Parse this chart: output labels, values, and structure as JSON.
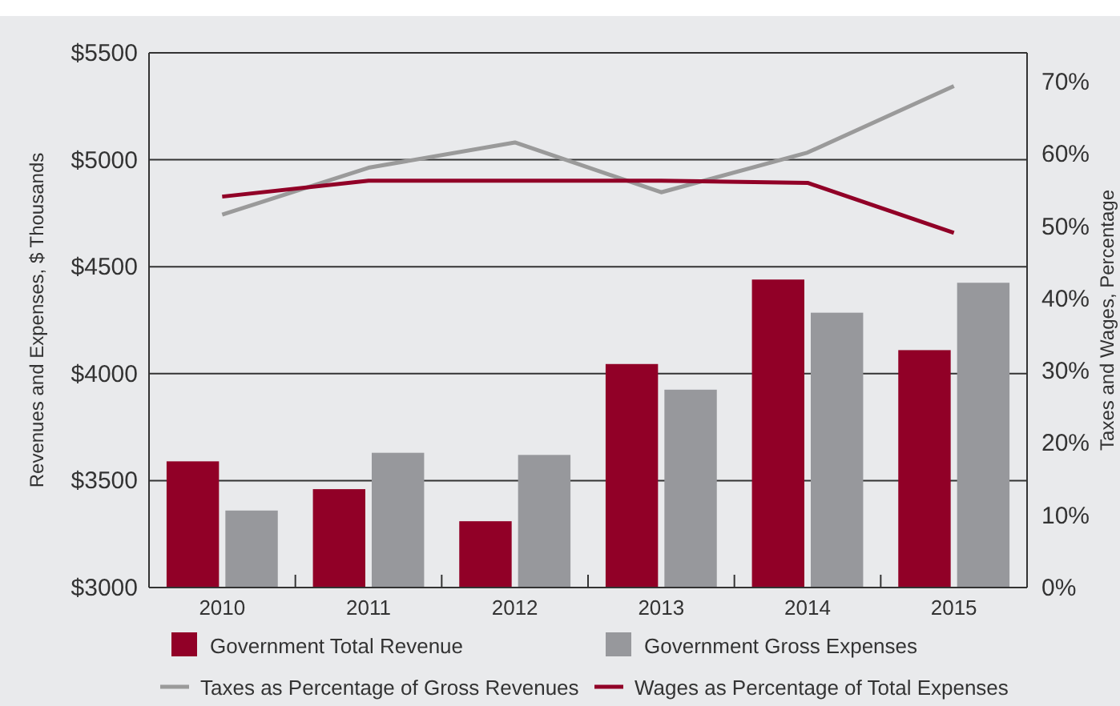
{
  "chart_data": {
    "type": "bar",
    "ylabel": "Revenues and Expenses, $ Thousands",
    "y2label": "Taxes and Wages, Percentage",
    "categories": [
      "2010",
      "2011",
      "2012",
      "2013",
      "2014",
      "2015"
    ],
    "series": [
      {
        "name": "Government Total Revenue",
        "color": "#910027",
        "values": [
          3590,
          3460,
          3310,
          4045,
          4440,
          4110
        ]
      },
      {
        "name": "Government Gross Expenses",
        "color": "#97989c",
        "values": [
          3360,
          3630,
          3620,
          3925,
          4285,
          4425
        ]
      },
      {
        "name": "Taxes as Percentage of Gross Revenues",
        "type": "line",
        "axis": "y2",
        "color": "#9a9a9a",
        "values": [
          51.6,
          58.1,
          61.6,
          54.7,
          60.2,
          69.4
        ]
      },
      {
        "name": "Wages as Percentage of Total Expenses",
        "type": "line",
        "axis": "y2",
        "color": "#910027",
        "values": [
          54.1,
          56.3,
          56.3,
          56.3,
          56.0,
          49.1
        ]
      }
    ],
    "ylim": [
      3000,
      5500
    ],
    "yticks": [
      {
        "value": 3000,
        "label": "$3000"
      },
      {
        "value": 3500,
        "label": "$3500"
      },
      {
        "value": 4000,
        "label": "$4000"
      },
      {
        "value": 4500,
        "label": "$4500"
      },
      {
        "value": 5000,
        "label": "$5000"
      },
      {
        "value": 5500,
        "label": "$5500"
      }
    ],
    "y2lim": [
      0,
      74
    ],
    "y2ticks": [
      {
        "value": 0,
        "label": "0%"
      },
      {
        "value": 10,
        "label": "10%"
      },
      {
        "value": 20,
        "label": "20%"
      },
      {
        "value": 30,
        "label": "30%"
      },
      {
        "value": 40,
        "label": "40%"
      },
      {
        "value": 50,
        "label": "50%"
      },
      {
        "value": 60,
        "label": "60%"
      },
      {
        "value": 70,
        "label": "70%"
      }
    ],
    "grid": "y",
    "legend": "bottom",
    "marker": "none",
    "line_style": "solid"
  }
}
